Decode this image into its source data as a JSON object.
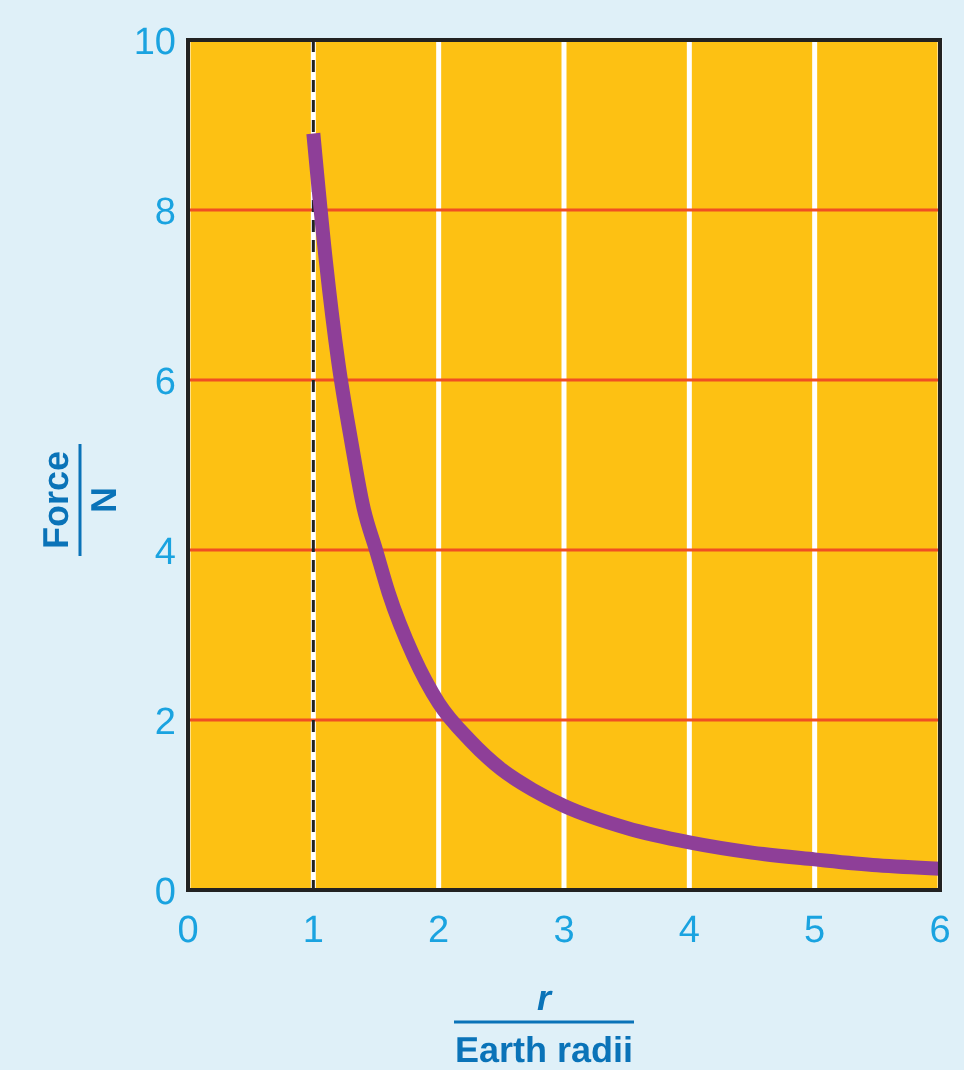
{
  "chart_data": {
    "type": "line",
    "xlabel": "r\nEarth radii",
    "ylabel": "Force\nN",
    "x": [
      1,
      1.1,
      1.2,
      1.3,
      1.4,
      1.5,
      1.6,
      1.8,
      2,
      2.25,
      2.5,
      2.75,
      3,
      3.5,
      4,
      4.5,
      5,
      5.5,
      6
    ],
    "series": [
      {
        "color": "#8e3f98",
        "values": [
          8.9,
          7.4,
          6.2,
          5.3,
          4.5,
          4.0,
          3.5,
          2.75,
          2.2,
          1.76,
          1.42,
          1.18,
          0.99,
          0.73,
          0.56,
          0.44,
          0.36,
          0.29,
          0.25
        ]
      }
    ],
    "xlim": [
      0,
      6
    ],
    "xticks": [
      0,
      1,
      2,
      3,
      4,
      5,
      6
    ],
    "ylim": [
      0,
      10
    ],
    "yticks": [
      0,
      2,
      4,
      6,
      8,
      10
    ],
    "grid": true,
    "marker": "none",
    "line_style": "solid",
    "ref_lines": [
      {
        "axis": "x",
        "value": 1,
        "color": "#222222",
        "line_style": "dashed"
      }
    ]
  }
}
